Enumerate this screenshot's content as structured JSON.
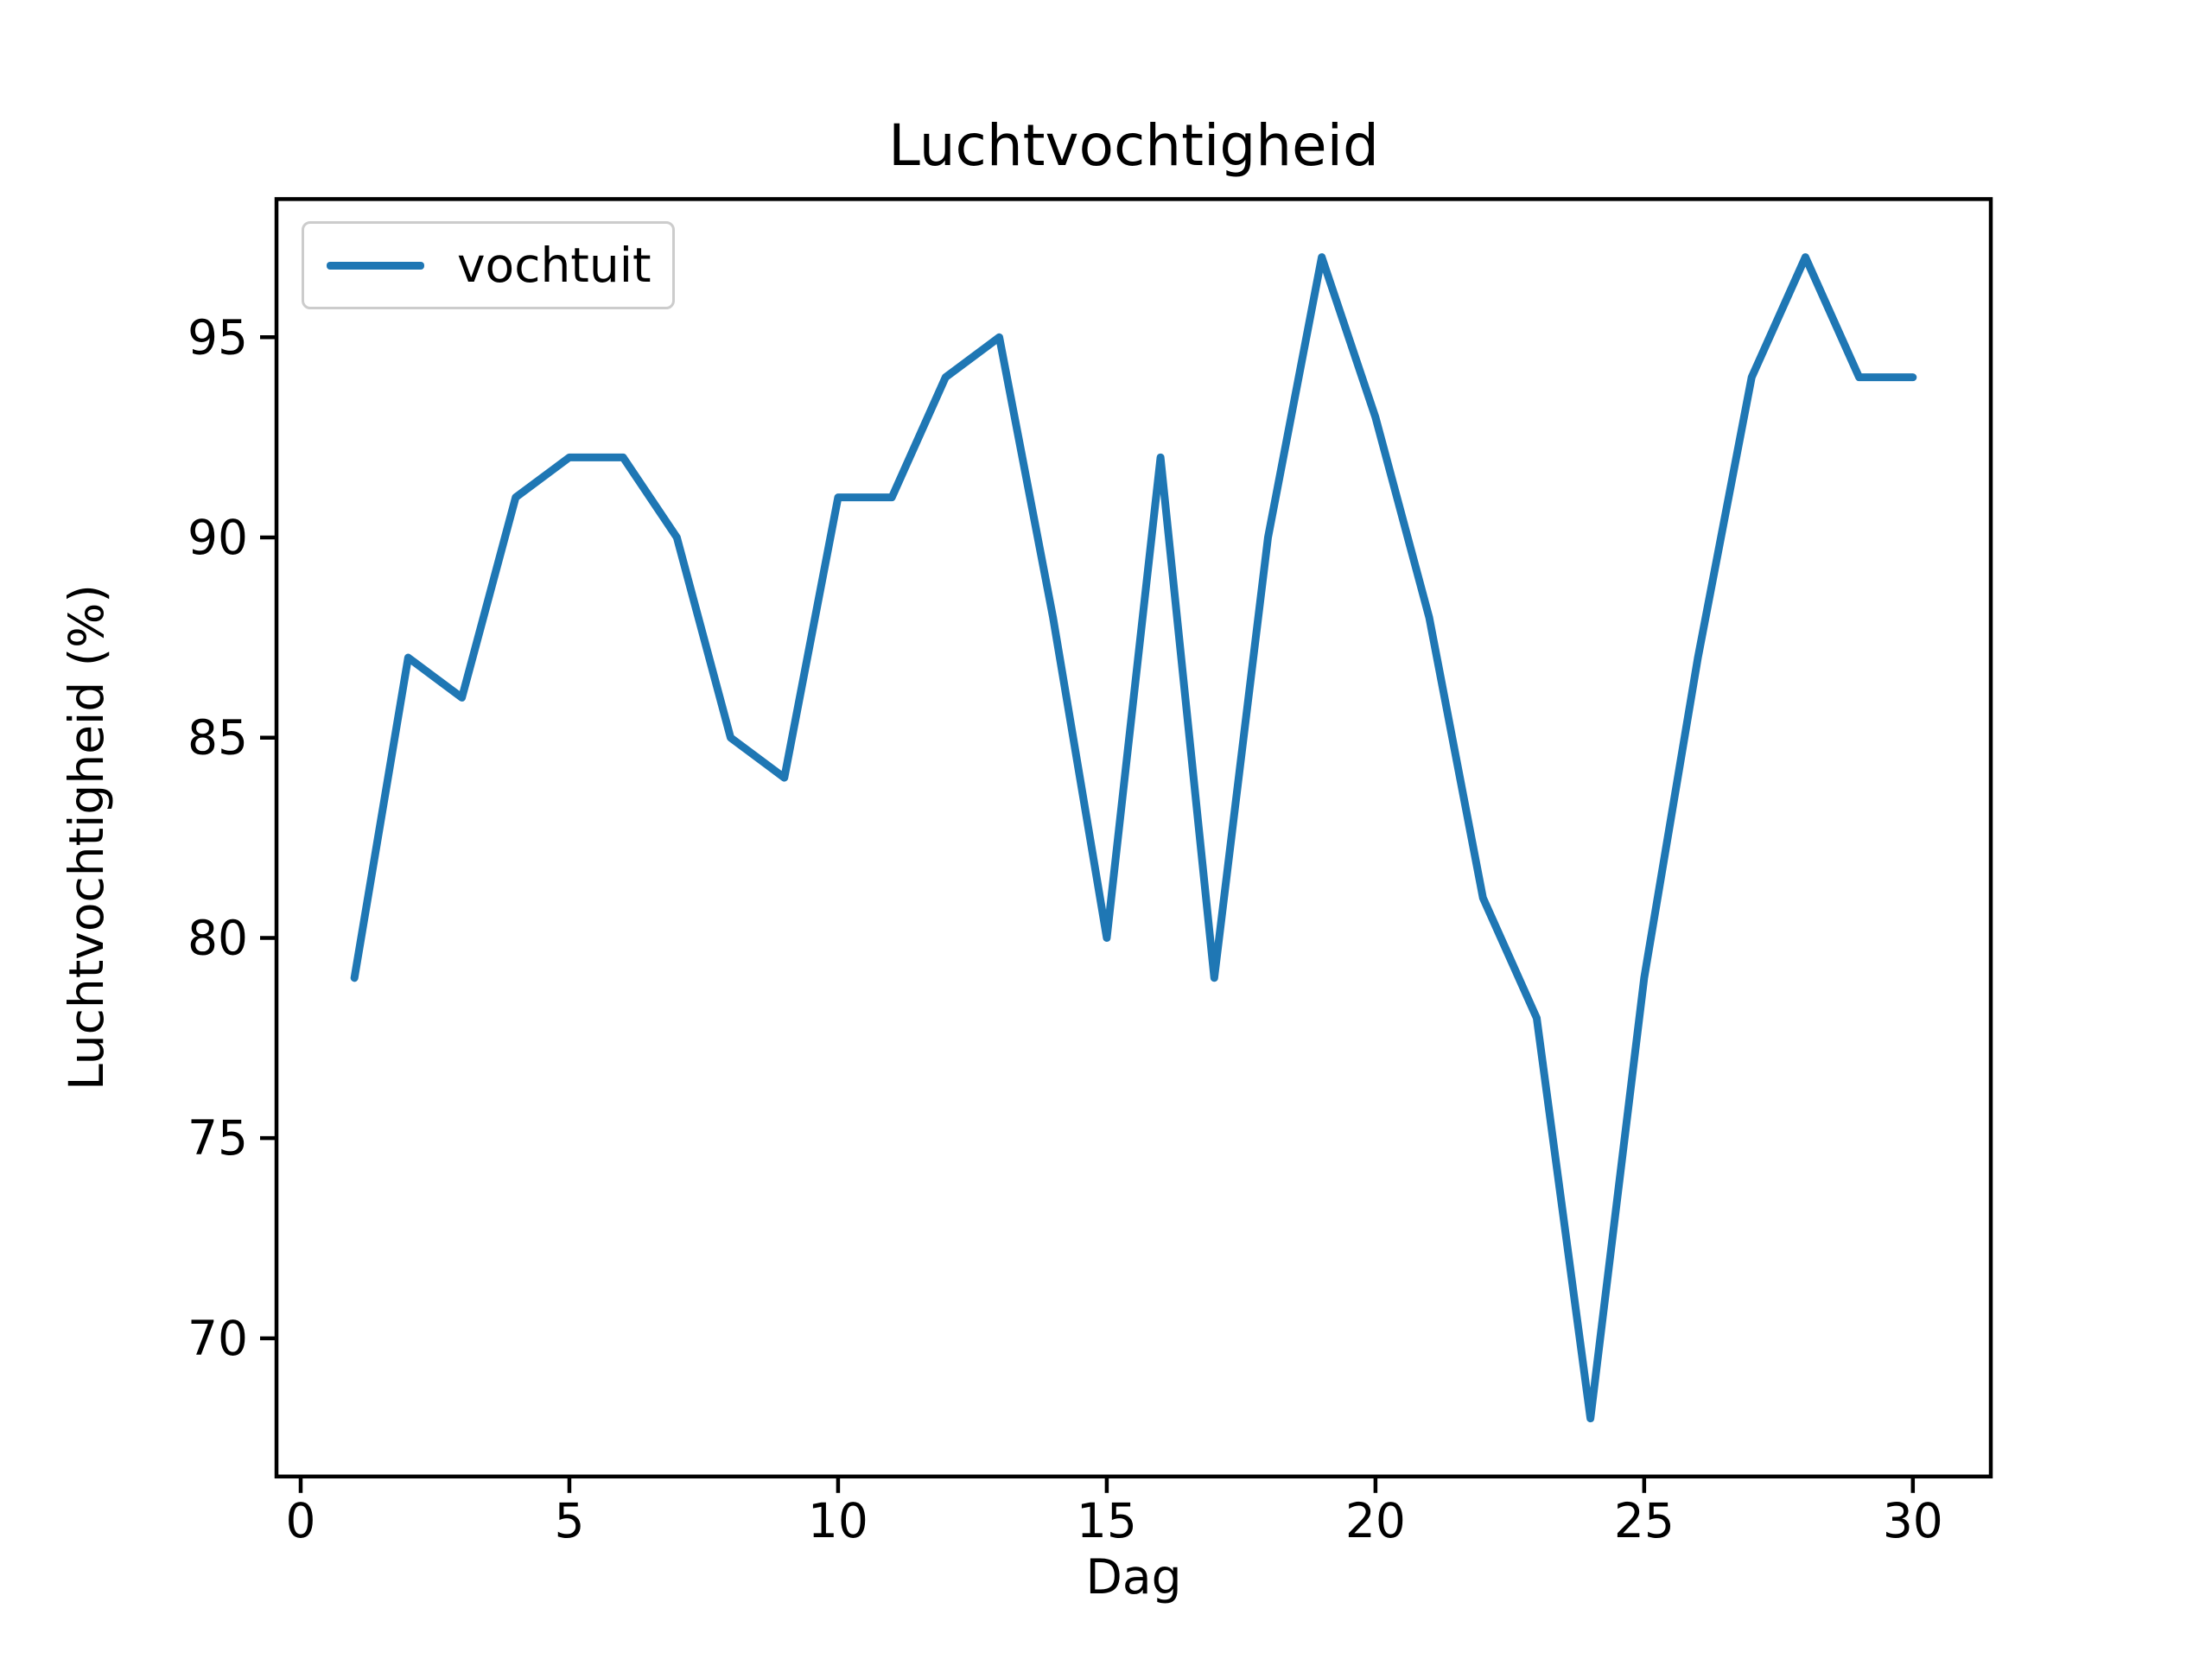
{
  "chart_data": {
    "type": "line",
    "title": "Luchtvochtigheid",
    "xlabel": "Dag",
    "ylabel": "Luchtvochtigheid (%)",
    "x": [
      1,
      2,
      3,
      4,
      5,
      6,
      7,
      8,
      9,
      10,
      11,
      12,
      13,
      14,
      15,
      16,
      17,
      18,
      19,
      20,
      21,
      22,
      23,
      24,
      25,
      26,
      27,
      28,
      29,
      30
    ],
    "series": [
      {
        "name": "vochtuit",
        "color": "#1f77b4",
        "values": [
          79,
          87,
          86,
          91,
          92,
          92,
          90,
          85,
          84,
          91,
          91,
          94,
          95,
          88,
          80,
          92,
          79,
          90,
          97,
          93,
          88,
          81,
          78,
          68,
          79,
          87,
          94,
          97,
          94,
          94
        ]
      }
    ],
    "xticks": [
      0,
      5,
      10,
      15,
      20,
      25,
      30
    ],
    "yticks": [
      70,
      75,
      80,
      85,
      90,
      95
    ],
    "xlim": [
      -0.45,
      31.45
    ],
    "ylim": [
      66.55,
      98.45
    ],
    "grid": false,
    "legend_position": "upper left",
    "axis_color": "#000000",
    "background_color": "#ffffff"
  }
}
